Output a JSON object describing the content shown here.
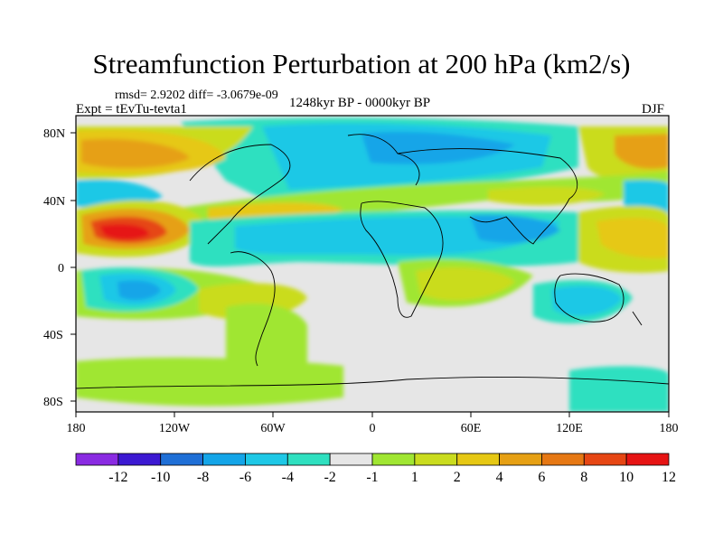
{
  "title": "Streamfunction Perturbation at 200 hPa (km2/s)",
  "stats": "rmsd= 2.9202 diff= -3.0679e-09",
  "experiment": "Expt = tEvTu-tevta1",
  "period": "1248kyr BP - 0000kyr BP",
  "season": "DJF",
  "lat_ticks": [
    "80N",
    "40N",
    "0",
    "40S",
    "80S"
  ],
  "lon_ticks": [
    "180",
    "120W",
    "60W",
    "0",
    "60E",
    "120E",
    "180"
  ],
  "colorbar": {
    "colors": [
      "#8a2be2",
      "#3c19d2",
      "#1f6fd6",
      "#14a5e8",
      "#1ec8e6",
      "#2fe0c0",
      "#e6e6e6",
      "#a0e632",
      "#cadc1e",
      "#e6c814",
      "#e6a014",
      "#e67814",
      "#e64614",
      "#e61414"
    ],
    "labels": [
      "-12",
      "-10",
      "-8",
      "-6",
      "-4",
      "-2",
      "-1",
      "1",
      "2",
      "4",
      "6",
      "8",
      "10",
      "12"
    ]
  }
}
